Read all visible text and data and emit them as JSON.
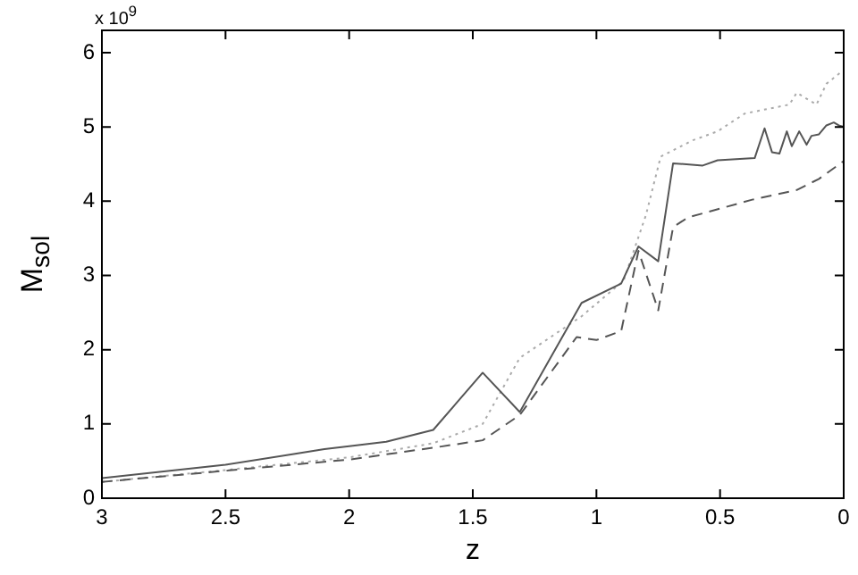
{
  "chart_data": {
    "type": "line",
    "xlabel": "z",
    "ylabel": "M$_{sol}$",
    "annotations": [
      "x 10$^{9}$"
    ],
    "xlim": [
      3,
      0
    ],
    "xticks": [
      3,
      2.5,
      2,
      1.5,
      1,
      0.5,
      0
    ],
    "ylim": [
      0,
      6.3
    ],
    "yticks": [
      0,
      1,
      2,
      3,
      4,
      5,
      6
    ],
    "grid": false,
    "legend": false,
    "marker": "none",
    "series": [
      {
        "color": "#555555",
        "line_style": "solid",
        "x": [
          3,
          2.5,
          2.1,
          2,
          1.85,
          1.66,
          1.46,
          1.31,
          1.06,
          0.9,
          0.83,
          0.75,
          0.69,
          0.57,
          0.51,
          0.36,
          0.32,
          0.29,
          0.26,
          0.23,
          0.21,
          0.18,
          0.15,
          0.13,
          0.1,
          0.07,
          0.04,
          0.02,
          0
        ],
        "values": [
          0.27,
          0.45,
          0.66,
          0.7,
          0.76,
          0.92,
          1.69,
          1.16,
          2.63,
          2.89,
          3.39,
          3.19,
          4.51,
          4.48,
          4.55,
          4.58,
          4.98,
          4.66,
          4.64,
          4.94,
          4.74,
          4.94,
          4.76,
          4.88,
          4.9,
          5.02,
          5.06,
          5.02,
          5.0
        ]
      },
      {
        "color": "#555555",
        "line_style": "dashed",
        "x": [
          3,
          2.5,
          2,
          1.66,
          1.46,
          1.31,
          1.08,
          1.0,
          0.9,
          0.83,
          0.75,
          0.69,
          0.63,
          0.37,
          0.19,
          0.1,
          0
        ],
        "values": [
          0.22,
          0.37,
          0.52,
          0.68,
          0.78,
          1.12,
          2.17,
          2.13,
          2.25,
          3.33,
          2.53,
          3.65,
          3.78,
          4.02,
          4.15,
          4.3,
          4.54
        ]
      },
      {
        "color": "#aaaaaa",
        "line_style": "dotted",
        "x": [
          3,
          2.5,
          2,
          1.66,
          1.46,
          1.31,
          1.06,
          0.89,
          0.8,
          0.74,
          0.61,
          0.51,
          0.4,
          0.22,
          0.19,
          0.11,
          0.07,
          0.01
        ],
        "values": [
          0.22,
          0.38,
          0.55,
          0.74,
          1.0,
          1.89,
          2.45,
          2.93,
          3.81,
          4.6,
          4.82,
          4.94,
          5.18,
          5.3,
          5.46,
          5.3,
          5.58,
          5.74
        ]
      }
    ]
  }
}
